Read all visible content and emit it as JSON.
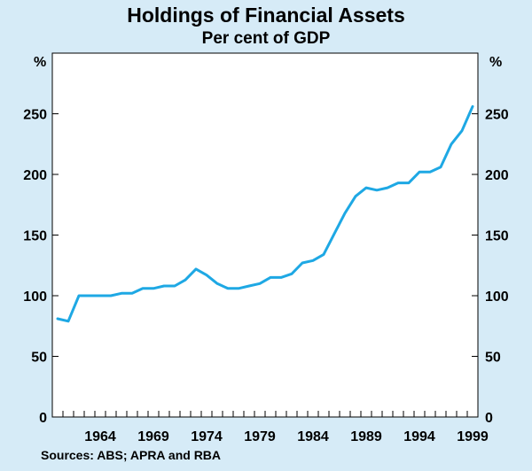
{
  "chart_data": {
    "type": "line",
    "title": "Holdings of Financial Assets",
    "subtitle": "Per cent of GDP",
    "ylabel_left": "%",
    "ylabel_right": "%",
    "ylim": [
      0,
      300
    ],
    "y_ticks": [
      0,
      50,
      100,
      150,
      200,
      250
    ],
    "x_ticks": [
      1964,
      1969,
      1974,
      1979,
      1984,
      1989,
      1994,
      1999
    ],
    "xlim": [
      1959.5,
      1999.5
    ],
    "line_color": "#1ea8e4",
    "source": "Sources: ABS; APRA and RBA",
    "series": [
      {
        "x": [
          1960,
          1961,
          1962,
          1963,
          1964,
          1965,
          1966,
          1967,
          1968,
          1969,
          1970,
          1971,
          1972,
          1973,
          1974,
          1975,
          1976,
          1977,
          1978,
          1979,
          1980,
          1981,
          1982,
          1983,
          1984,
          1985,
          1986,
          1987,
          1988,
          1989,
          1990,
          1991,
          1992,
          1993,
          1994,
          1995,
          1996,
          1997,
          1998,
          1999
        ],
        "values": [
          81,
          79,
          100,
          100,
          100,
          100,
          102,
          102,
          106,
          106,
          108,
          108,
          113,
          122,
          117,
          110,
          106,
          106,
          108,
          110,
          115,
          115,
          118,
          127,
          129,
          134,
          151,
          168,
          182,
          189,
          187,
          189,
          193,
          193,
          202,
          202,
          206,
          225,
          236,
          256
        ]
      }
    ]
  }
}
